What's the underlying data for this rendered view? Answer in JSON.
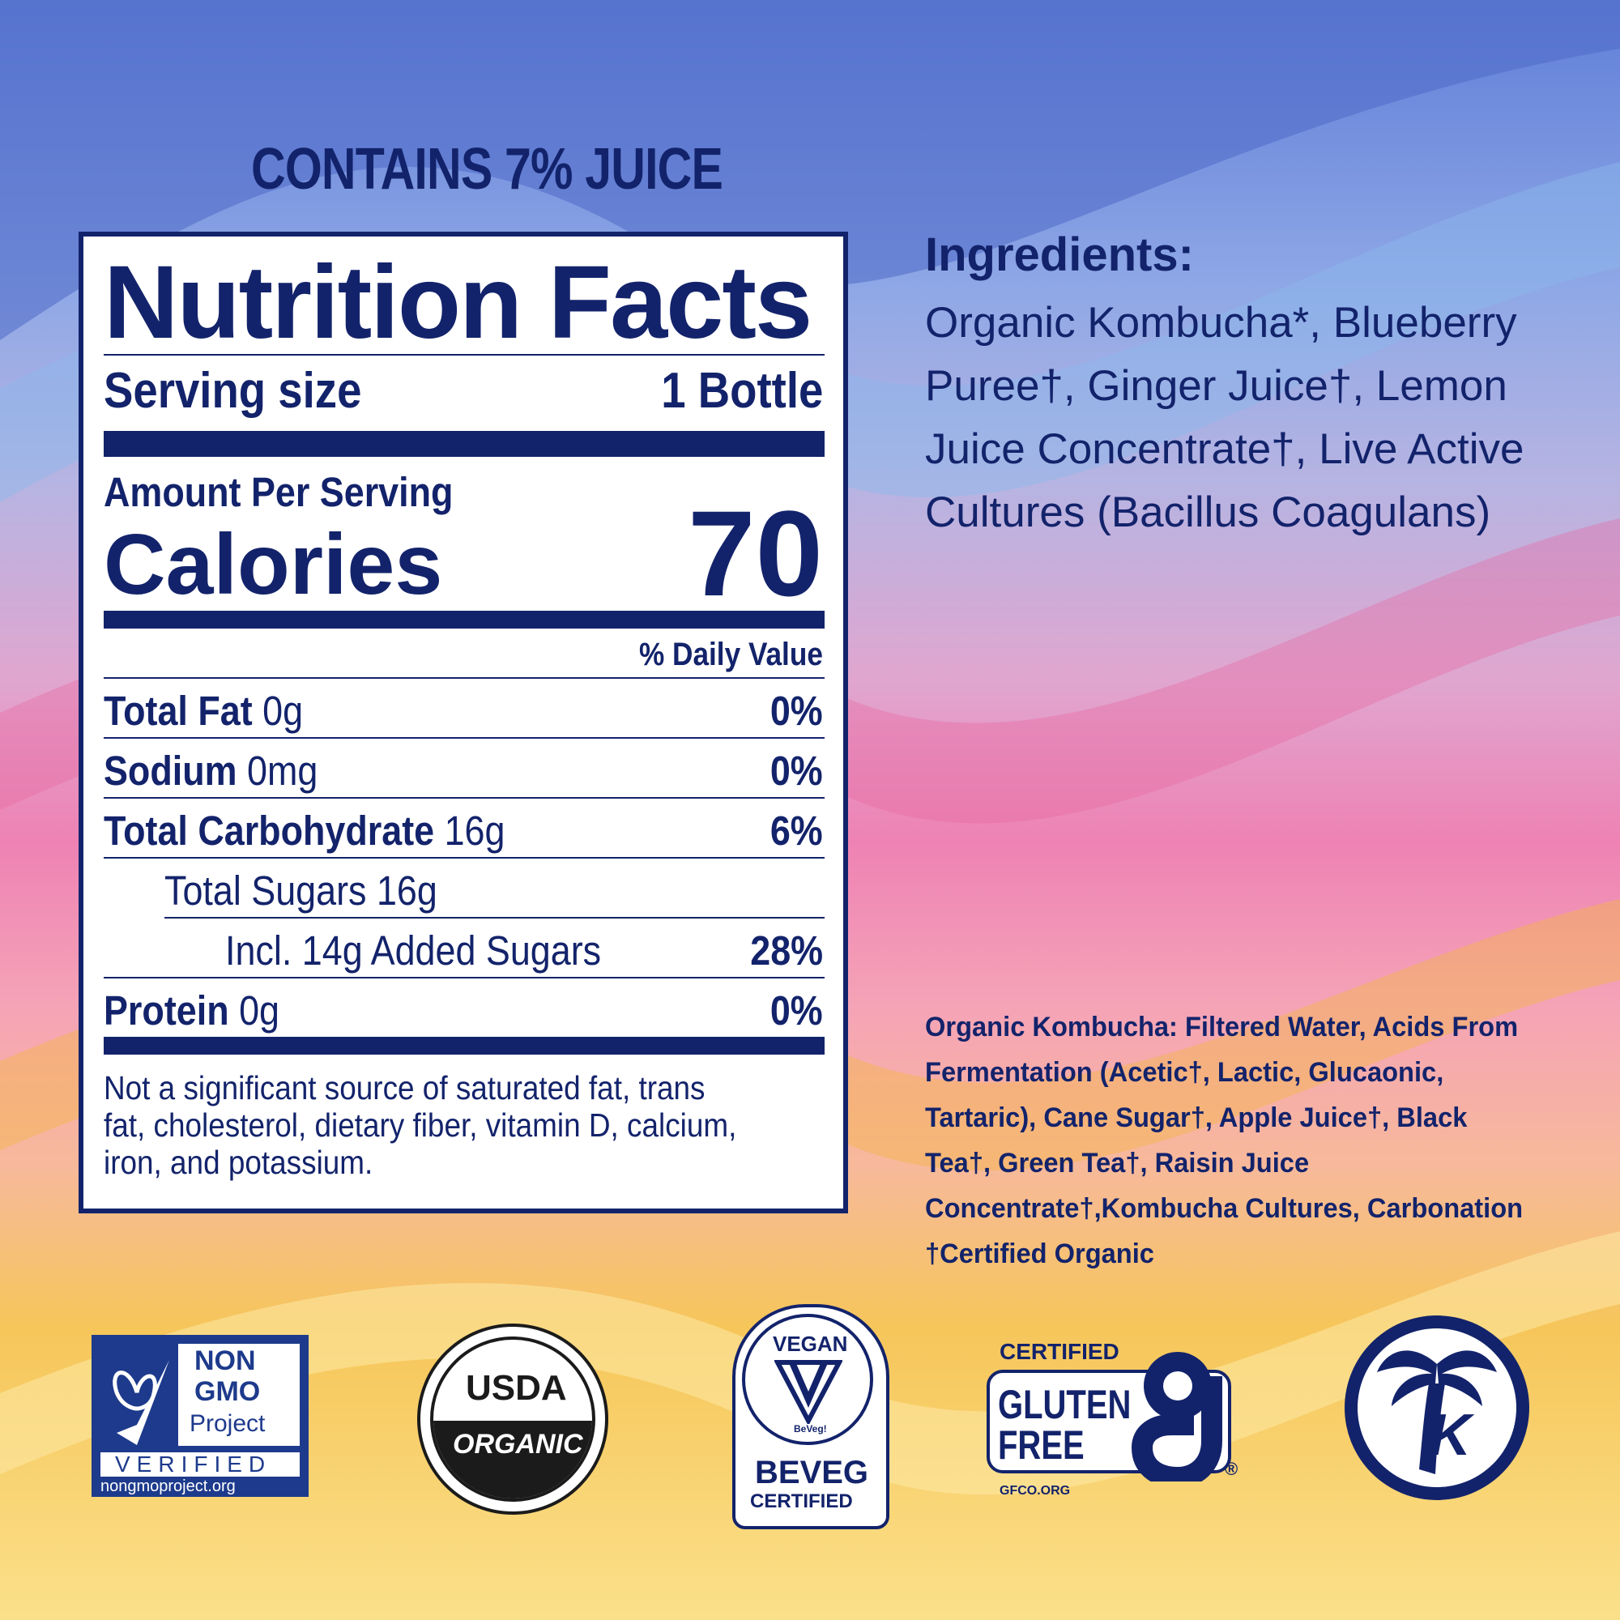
{
  "colors": {
    "navy": "#13236b",
    "panel": "#ffffff"
  },
  "header": {
    "juice_text": "CONTAINS 7% JUICE"
  },
  "nutrition": {
    "title": "Nutrition Facts",
    "serving_label": "Serving size",
    "serving_value": "1 Bottle",
    "amount_label": "Amount Per Serving",
    "calories_label": "Calories",
    "calories_value": "70",
    "dv_header": "% Daily Value",
    "rows": [
      {
        "name": "Total Fat",
        "amount": "0g",
        "dv": "0%"
      },
      {
        "name": "Sodium",
        "amount": "0mg",
        "dv": "0%"
      },
      {
        "name": "Total Carbohydrate",
        "amount": "16g",
        "dv": "6%"
      },
      {
        "name": "Total Sugars 16g",
        "amount": "",
        "dv": ""
      },
      {
        "name": "Incl. 14g Added Sugars",
        "amount": "",
        "dv": "28%"
      },
      {
        "name": "Protein",
        "amount": "0g",
        "dv": "0%"
      }
    ],
    "footnote": "Not a significant source of saturated fat, trans fat, cholesterol, dietary fiber, vitamin D, calcium, iron, and potassium."
  },
  "ingredients": {
    "heading": "Ingredients:",
    "text": "Organic Kombucha*, Blueberry Puree†, Ginger Juice†, Lemon Juice Concentrate†, Live Active Cultures (Bacillus Coagulans)"
  },
  "kombucha_note": "Organic Kombucha: Filtered Water, Acids From Fermentation (Acetic†, Lactic, Glucaonic, Tartaric), Cane Sugar†, Apple Juice†, Black Tea†, Green Tea†, Raisin Juice Concentrate†,Kombucha Cultures, Carbonation †Certified Organic",
  "logos": {
    "nongmo": {
      "line1": "NON",
      "line2": "GMO",
      "line3": "Project",
      "verified": "VERIFIED",
      "url": "nongmoproject.org"
    },
    "usda": {
      "top": "USDA",
      "bottom": "ORGANIC"
    },
    "vegan": {
      "top": "VEGAN",
      "mini": "BeVeg!",
      "brand": "BEVEG",
      "cert": "CERTIFIED"
    },
    "gluten": {
      "top": "CERTIFIED",
      "line1": "GLUTEN",
      "line2": "FREE",
      "reg": "®",
      "url": "GFCO.ORG"
    },
    "kosher": {
      "letter": "K"
    }
  }
}
